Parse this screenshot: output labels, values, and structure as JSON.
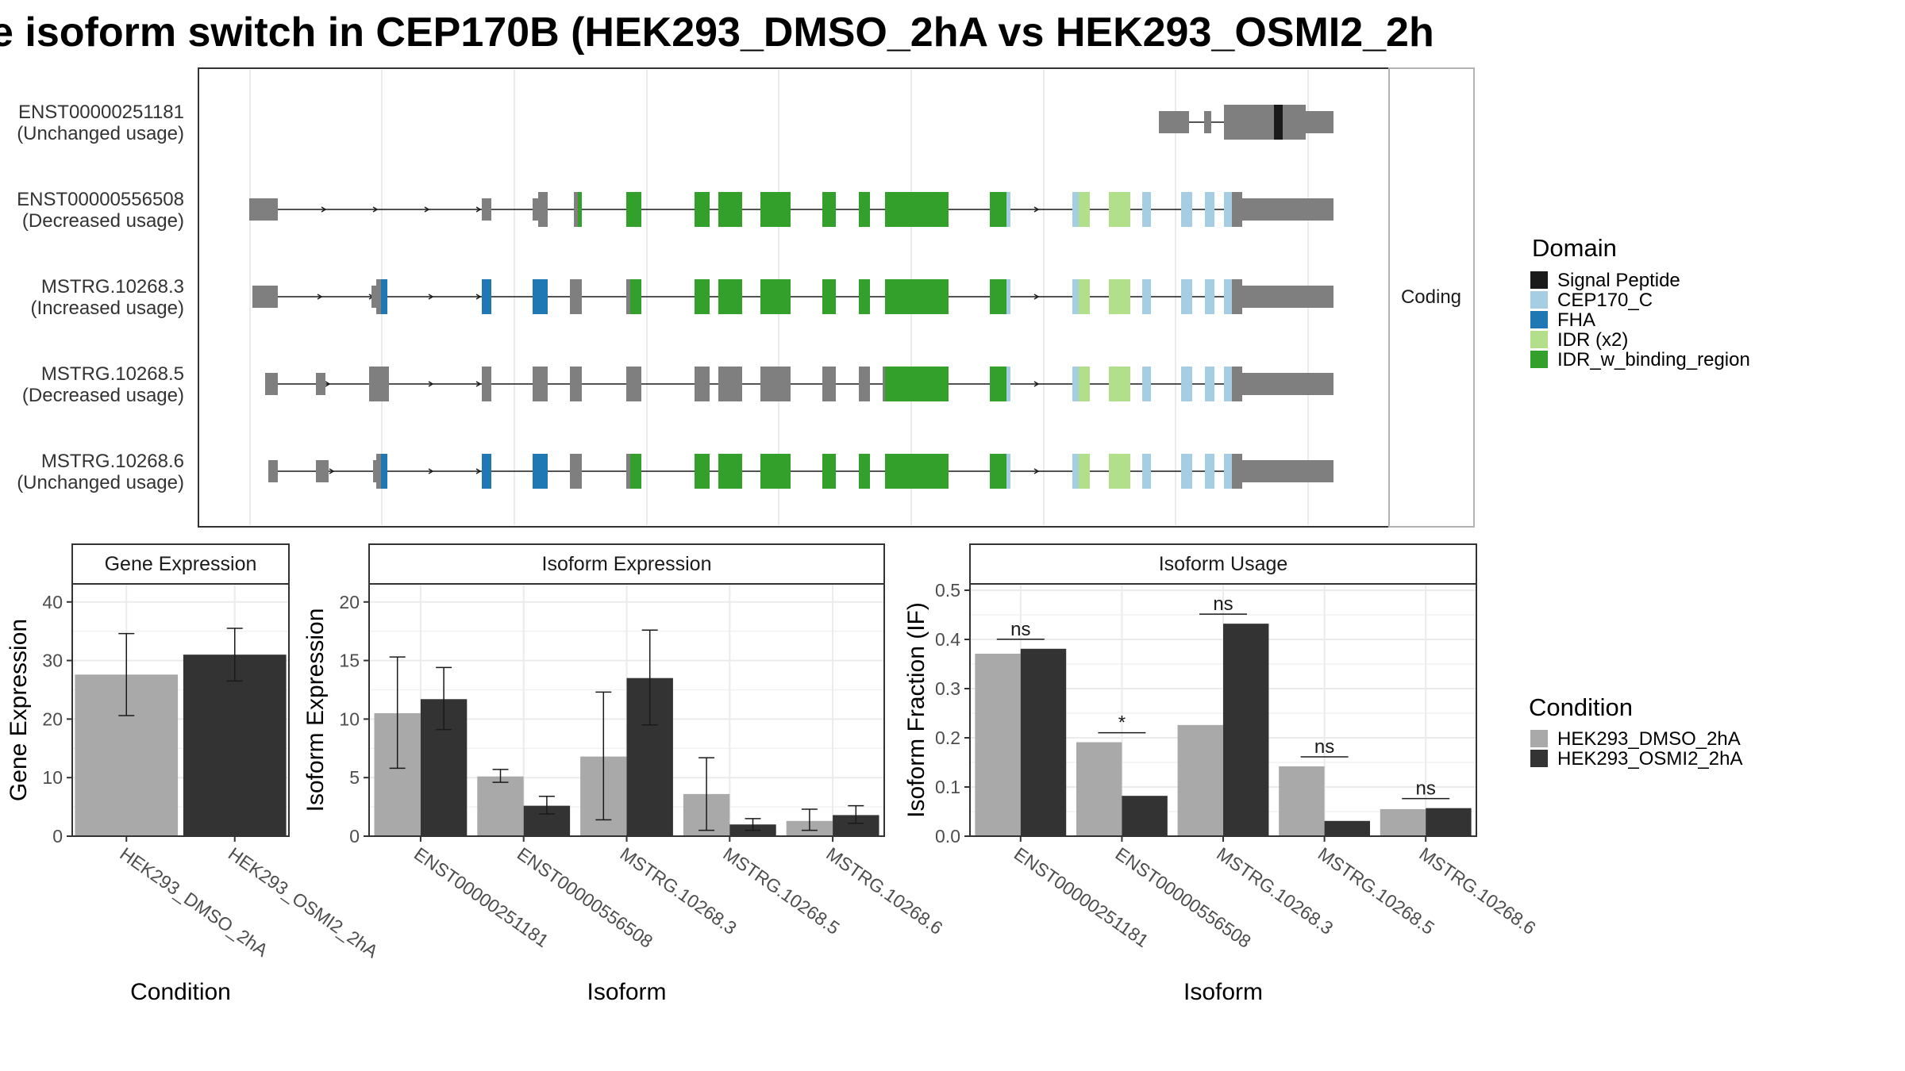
{
  "title": "e isoform switch in CEP170B (HEK293_DMSO_2hA vs HEK293_OSMI2_2h",
  "structure": {
    "facet_label": "Coding",
    "tracks": [
      {
        "id": "ENST00000251181",
        "usage": "(Unchanged usage)"
      },
      {
        "id": "ENST00000556508",
        "usage": "(Decreased usage)"
      },
      {
        "id": "MSTRG.10268.3",
        "usage": "(Increased usage)"
      },
      {
        "id": "MSTRG.10268.5",
        "usage": "(Decreased usage)"
      },
      {
        "id": "MSTRG.10268.6",
        "usage": "(Unchanged usage)"
      }
    ]
  },
  "domain_legend": {
    "title": "Domain",
    "items": [
      {
        "label": "Signal Peptide",
        "color": "#1a1a1a"
      },
      {
        "label": "CEP170_C",
        "color": "#a6cee3"
      },
      {
        "label": "FHA",
        "color": "#1f78b4"
      },
      {
        "label": "IDR (x2)",
        "color": "#b2df8a"
      },
      {
        "label": "IDR_w_binding_region",
        "color": "#33a02c"
      }
    ]
  },
  "condition_legend": {
    "title": "Condition",
    "items": [
      {
        "label": "HEK293_DMSO_2hA",
        "color": "#a9a9a9"
      },
      {
        "label": "HEK293_OSMI2_2hA",
        "color": "#333333"
      }
    ]
  },
  "chart_data": [
    {
      "type": "bar",
      "title": "Gene Expression",
      "xlabel": "Condition",
      "ylabel": "Gene Expression",
      "ylim": [
        0,
        42
      ],
      "yticks": [
        0,
        10,
        20,
        30,
        40
      ],
      "categories": [
        "HEK293_DMSO_2hA",
        "HEK293_OSMI2_2hA"
      ],
      "series": [
        {
          "values": [
            27.6,
            31.0
          ],
          "err_low": [
            20.6,
            26.5
          ],
          "err_high": [
            34.6,
            35.5
          ]
        }
      ]
    },
    {
      "type": "bar",
      "title": "Isoform Expression",
      "xlabel": "Isoform",
      "ylabel": "Isoform Expression",
      "ylim": [
        0,
        21
      ],
      "yticks": [
        0,
        5,
        10,
        15,
        20
      ],
      "categories": [
        "ENST00000251181",
        "ENST00000556508",
        "MSTRG.10268.3",
        "MSTRG.10268.5",
        "MSTRG.10268.6"
      ],
      "series": [
        {
          "name": "HEK293_DMSO_2hA",
          "values": [
            10.5,
            5.1,
            6.8,
            3.6,
            1.3
          ],
          "err_low": [
            5.8,
            4.6,
            1.4,
            0.5,
            0.5
          ],
          "err_high": [
            15.3,
            5.7,
            12.3,
            6.7,
            2.3
          ]
        },
        {
          "name": "HEK293_OSMI2_2hA",
          "values": [
            11.7,
            2.6,
            13.5,
            1.0,
            1.8
          ],
          "err_low": [
            9.1,
            1.9,
            9.5,
            0.5,
            1.1
          ],
          "err_high": [
            14.4,
            3.4,
            17.6,
            1.5,
            2.6
          ]
        }
      ]
    },
    {
      "type": "bar",
      "title": "Isoform Usage",
      "xlabel": "Isoform",
      "ylabel": "Isoform Fraction (IF)",
      "ylim": [
        0,
        0.5
      ],
      "yticks": [
        "0.0",
        "0.1",
        "0.2",
        "0.3",
        "0.4",
        "0.5"
      ],
      "categories": [
        "ENST00000251181",
        "ENST00000556508",
        "MSTRG.10268.3",
        "MSTRG.10268.5",
        "MSTRG.10268.6"
      ],
      "series": [
        {
          "name": "HEK293_DMSO_2hA",
          "values": [
            0.371,
            0.191,
            0.226,
            0.142,
            0.055
          ]
        },
        {
          "name": "HEK293_OSMI2_2hA",
          "values": [
            0.381,
            0.082,
            0.432,
            0.031,
            0.057
          ]
        }
      ],
      "significance": [
        "ns",
        "*",
        "ns",
        "ns",
        "ns"
      ]
    }
  ]
}
